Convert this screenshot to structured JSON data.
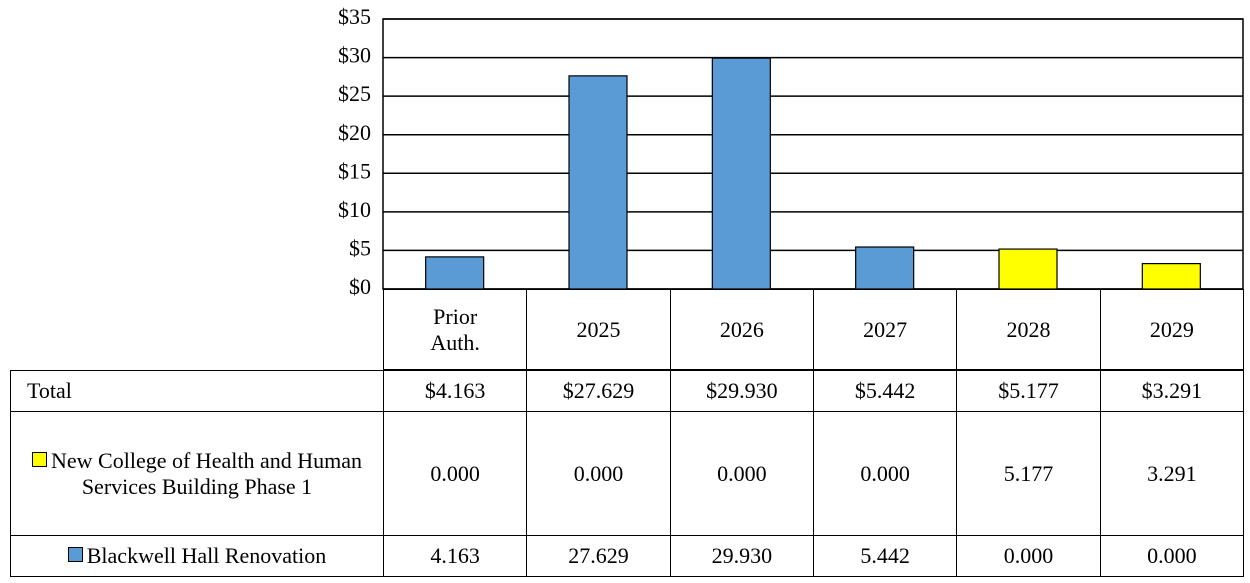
{
  "chart_data": {
    "type": "stacked_bar",
    "categories": [
      "Prior Auth.",
      "2025",
      "2026",
      "2027",
      "2028",
      "2029"
    ],
    "series": [
      {
        "name": "New College of Health and Human Services Building Phase 1",
        "color": "#ffff00",
        "values": [
          0,
          0,
          0,
          0,
          5.177,
          3.291
        ],
        "value_labels": [
          "0.000",
          "0.000",
          "0.000",
          "0.000",
          "5.177",
          "3.291"
        ]
      },
      {
        "name": "Blackwell Hall Renovation",
        "color": "#5b9bd5",
        "values": [
          4.163,
          27.629,
          29.93,
          5.442,
          0,
          0
        ],
        "value_labels": [
          "4.163",
          "27.629",
          "29.930",
          "5.442",
          "0.000",
          "0.000"
        ]
      }
    ],
    "totals": {
      "name": "Total",
      "values": [
        4.163,
        27.629,
        29.93,
        5.442,
        5.177,
        3.291
      ],
      "value_labels": [
        "$4.163",
        "$27.629",
        "$29.930",
        "$5.442",
        "$5.177",
        "$3.291"
      ]
    },
    "ylim": [
      0,
      35
    ],
    "yticks": [
      {
        "value": 0,
        "label": "$0"
      },
      {
        "value": 5,
        "label": "$5"
      },
      {
        "value": 10,
        "label": "$10"
      },
      {
        "value": 15,
        "label": "$15"
      },
      {
        "value": 20,
        "label": "$20"
      },
      {
        "value": 25,
        "label": "$25"
      },
      {
        "value": 30,
        "label": "$30"
      },
      {
        "value": 35,
        "label": "$35"
      }
    ],
    "grid": true
  }
}
